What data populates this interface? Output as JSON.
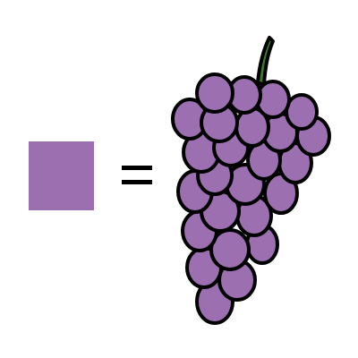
{
  "colors": {
    "grape_purple": "#9b6fb0",
    "outline": "#000000",
    "stem_green": "#3f7a2c",
    "background": "#ffffff"
  },
  "equation": {
    "left": "purple-color-swatch",
    "operator": "equals-sign",
    "right": "grapes-icon"
  }
}
